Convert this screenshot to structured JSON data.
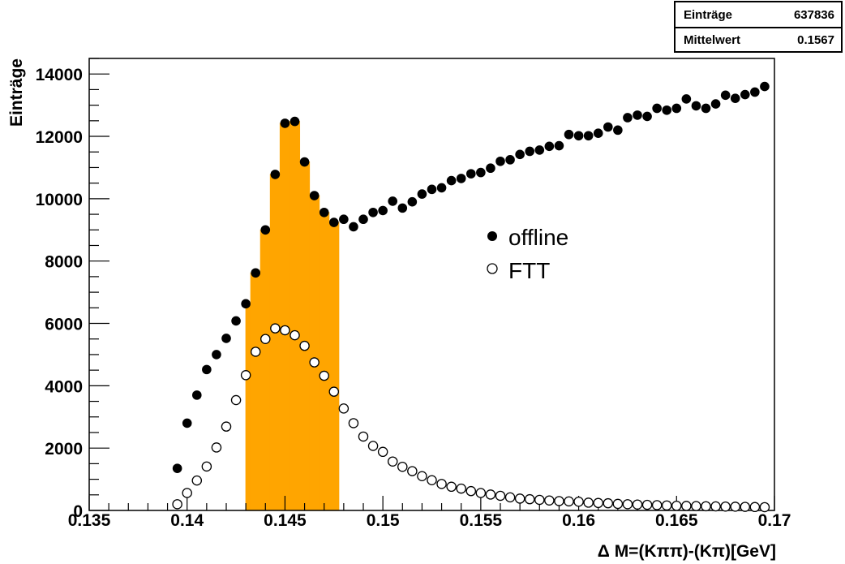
{
  "stats": [
    {
      "key": "Einträge",
      "value": "637836"
    },
    {
      "key": "Mittelwert",
      "value": "0.1567"
    }
  ],
  "chart_data": {
    "type": "scatter",
    "title": "",
    "xlabel": "Δ M=(Kππ)-(Kπ)[GeV]",
    "ylabel": "Einträge",
    "xlim": [
      0.135,
      0.17
    ],
    "ylim": [
      0,
      14500
    ],
    "x_ticks": [
      0.135,
      0.14,
      0.145,
      0.15,
      0.155,
      0.16,
      0.165,
      0.17
    ],
    "x_tick_labels": [
      "0.135",
      "0.14",
      "0.145",
      "0.15",
      "0.155",
      "0.16",
      "0.165",
      "0.17"
    ],
    "y_ticks": [
      0,
      2000,
      4000,
      6000,
      8000,
      10000,
      12000,
      14000
    ],
    "y_tick_labels": [
      "0",
      "2000",
      "4000",
      "6000",
      "8000",
      "10000",
      "12000",
      "14000"
    ],
    "legend_position": "center-right",
    "highlight_color": "#ffa500",
    "highlight_range": [
      0.143,
      0.148
    ],
    "series": [
      {
        "name": "offline",
        "marker": "filled-circle",
        "x": [
          0.1395,
          0.14,
          0.1405,
          0.141,
          0.1415,
          0.142,
          0.1425,
          0.143,
          0.1435,
          0.144,
          0.1445,
          0.145,
          0.1455,
          0.146,
          0.1465,
          0.147,
          0.1475,
          0.148,
          0.1485,
          0.149,
          0.1495,
          0.15,
          0.1505,
          0.151,
          0.1515,
          0.152,
          0.1525,
          0.153,
          0.1535,
          0.154,
          0.1545,
          0.155,
          0.1555,
          0.156,
          0.1565,
          0.157,
          0.1575,
          0.158,
          0.1585,
          0.159,
          0.1595,
          0.16,
          0.1605,
          0.161,
          0.1615,
          0.162,
          0.1625,
          0.163,
          0.1635,
          0.164,
          0.1645,
          0.165,
          0.1655,
          0.166,
          0.1665,
          0.167,
          0.1675,
          0.168,
          0.1685,
          0.169,
          0.1695
        ],
        "y": [
          1350,
          2800,
          3700,
          4520,
          5000,
          5520,
          6080,
          6630,
          7620,
          9000,
          10780,
          12420,
          12480,
          11180,
          10100,
          9560,
          9240,
          9340,
          9100,
          9340,
          9560,
          9620,
          9920,
          9700,
          9900,
          10150,
          10300,
          10350,
          10580,
          10650,
          10800,
          10840,
          10980,
          11200,
          11250,
          11420,
          11520,
          11560,
          11680,
          11700,
          12060,
          12020,
          12020,
          12100,
          12300,
          12200,
          12600,
          12680,
          12640,
          12900,
          12840,
          12900,
          13200,
          12980,
          12900,
          13040,
          13320,
          13220,
          13340,
          13420,
          13600
        ]
      },
      {
        "name": "FTT",
        "marker": "open-circle",
        "x": [
          0.1395,
          0.14,
          0.1405,
          0.141,
          0.1415,
          0.142,
          0.1425,
          0.143,
          0.1435,
          0.144,
          0.1445,
          0.145,
          0.1455,
          0.146,
          0.1465,
          0.147,
          0.1475,
          0.148,
          0.1485,
          0.149,
          0.1495,
          0.15,
          0.1505,
          0.151,
          0.1515,
          0.152,
          0.1525,
          0.153,
          0.1535,
          0.154,
          0.1545,
          0.155,
          0.1555,
          0.156,
          0.1565,
          0.157,
          0.1575,
          0.158,
          0.1585,
          0.159,
          0.1595,
          0.16,
          0.1605,
          0.161,
          0.1615,
          0.162,
          0.1625,
          0.163,
          0.1635,
          0.164,
          0.1645,
          0.165,
          0.1655,
          0.166,
          0.1665,
          0.167,
          0.1675,
          0.168,
          0.1685,
          0.169,
          0.1695
        ],
        "y": [
          200,
          560,
          960,
          1410,
          2020,
          2690,
          3540,
          4340,
          5090,
          5500,
          5840,
          5780,
          5620,
          5280,
          4750,
          4320,
          3810,
          3270,
          2800,
          2370,
          2070,
          1880,
          1570,
          1400,
          1260,
          1100,
          970,
          850,
          760,
          700,
          620,
          560,
          510,
          470,
          420,
          380,
          360,
          340,
          320,
          300,
          290,
          280,
          250,
          240,
          230,
          210,
          200,
          190,
          180,
          170,
          160,
          150,
          145,
          140,
          135,
          130,
          125,
          120,
          115,
          110,
          105
        ]
      }
    ]
  }
}
